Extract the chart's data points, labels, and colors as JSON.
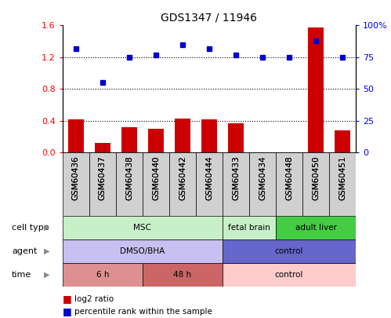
{
  "title": "GDS1347 / 11946",
  "samples": [
    "GSM60436",
    "GSM60437",
    "GSM60438",
    "GSM60440",
    "GSM60442",
    "GSM60444",
    "GSM60433",
    "GSM60434",
    "GSM60448",
    "GSM60450",
    "GSM60451"
  ],
  "log2_ratio": [
    0.42,
    0.12,
    0.32,
    0.3,
    0.43,
    0.42,
    0.37,
    0.0,
    0.0,
    1.57,
    0.28
  ],
  "percentile_rank": [
    82,
    55,
    75,
    77,
    85,
    82,
    77,
    75,
    75,
    88,
    75
  ],
  "ylim_left": [
    0,
    1.6
  ],
  "ylim_right": [
    0,
    100
  ],
  "yticks_left": [
    0,
    0.4,
    0.8,
    1.2,
    1.6
  ],
  "yticks_right": [
    0,
    25,
    50,
    75,
    100
  ],
  "bar_color": "#cc0000",
  "dot_color": "#0000cc",
  "cell_type_groups": [
    {
      "label": "MSC",
      "start": 0,
      "end": 6,
      "color": "#c8f0c8"
    },
    {
      "label": "fetal brain",
      "start": 6,
      "end": 8,
      "color": "#c8f0c8"
    },
    {
      "label": "adult liver",
      "start": 8,
      "end": 11,
      "color": "#44cc44"
    }
  ],
  "agent_groups": [
    {
      "label": "DMSO/BHA",
      "start": 0,
      "end": 6,
      "color": "#c8c0f0"
    },
    {
      "label": "control",
      "start": 6,
      "end": 11,
      "color": "#6666cc"
    }
  ],
  "time_groups": [
    {
      "label": "6 h",
      "start": 0,
      "end": 3,
      "color": "#dd9090"
    },
    {
      "label": "48 h",
      "start": 3,
      "end": 6,
      "color": "#cc6666"
    },
    {
      "label": "control",
      "start": 6,
      "end": 11,
      "color": "#ffcccc"
    }
  ],
  "row_labels": [
    "cell type",
    "agent",
    "time"
  ],
  "legend_red_label": "log2 ratio",
  "legend_blue_label": "percentile rank within the sample"
}
